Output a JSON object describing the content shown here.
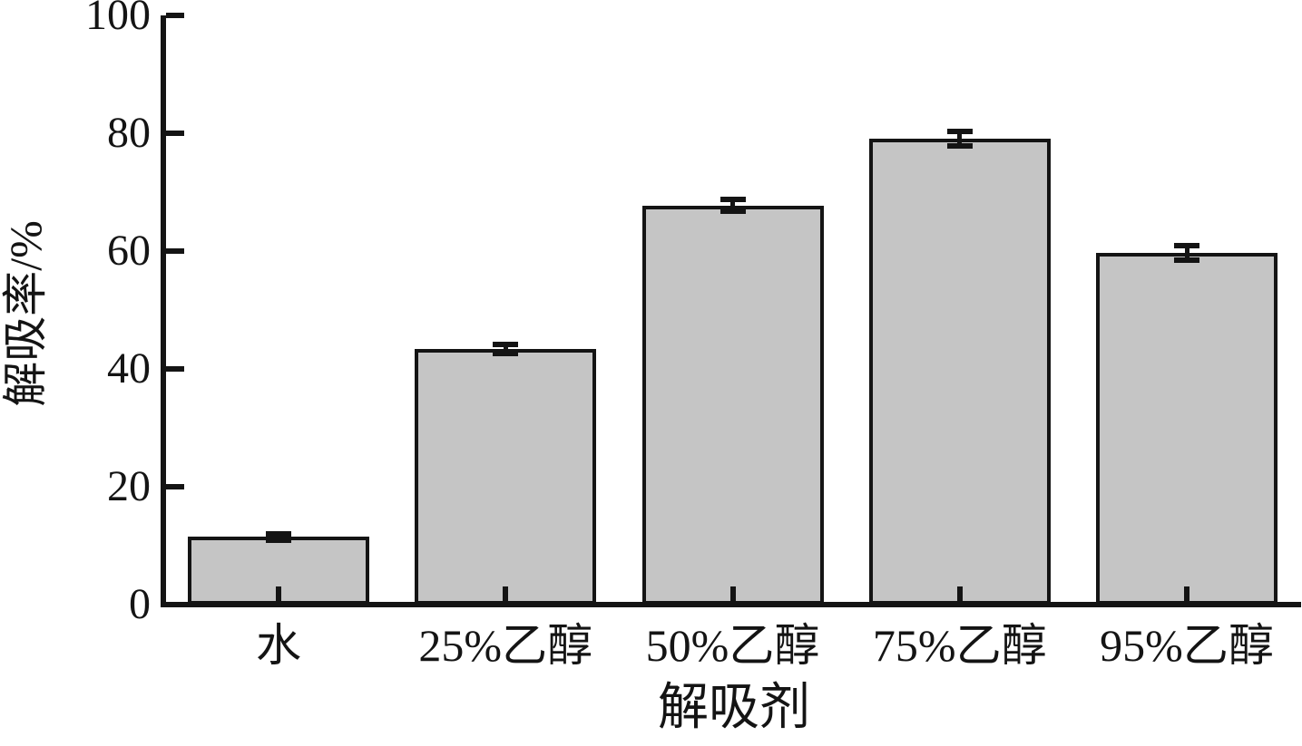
{
  "chart_data": {
    "type": "bar",
    "title": "",
    "xlabel": "解吸剂",
    "ylabel": "解吸率/%",
    "categories": [
      "水",
      "25%乙醇",
      "50%乙醇",
      "75%乙醇",
      "95%乙醇"
    ],
    "values": [
      11.5,
      43.4,
      67.7,
      79.1,
      59.7
    ],
    "errors": [
      0.5,
      0.8,
      1.0,
      1.2,
      1.2
    ],
    "ylim": [
      0,
      100
    ],
    "yticks": [
      0,
      20,
      40,
      60,
      80,
      100
    ],
    "grid": false,
    "legend": null,
    "tick_direction": "in",
    "bar_fill": "#c5c5c5",
    "bar_border": "#141414",
    "error_bar_color": "#141414",
    "axis_color": "#141414",
    "background": "#ffffff"
  }
}
